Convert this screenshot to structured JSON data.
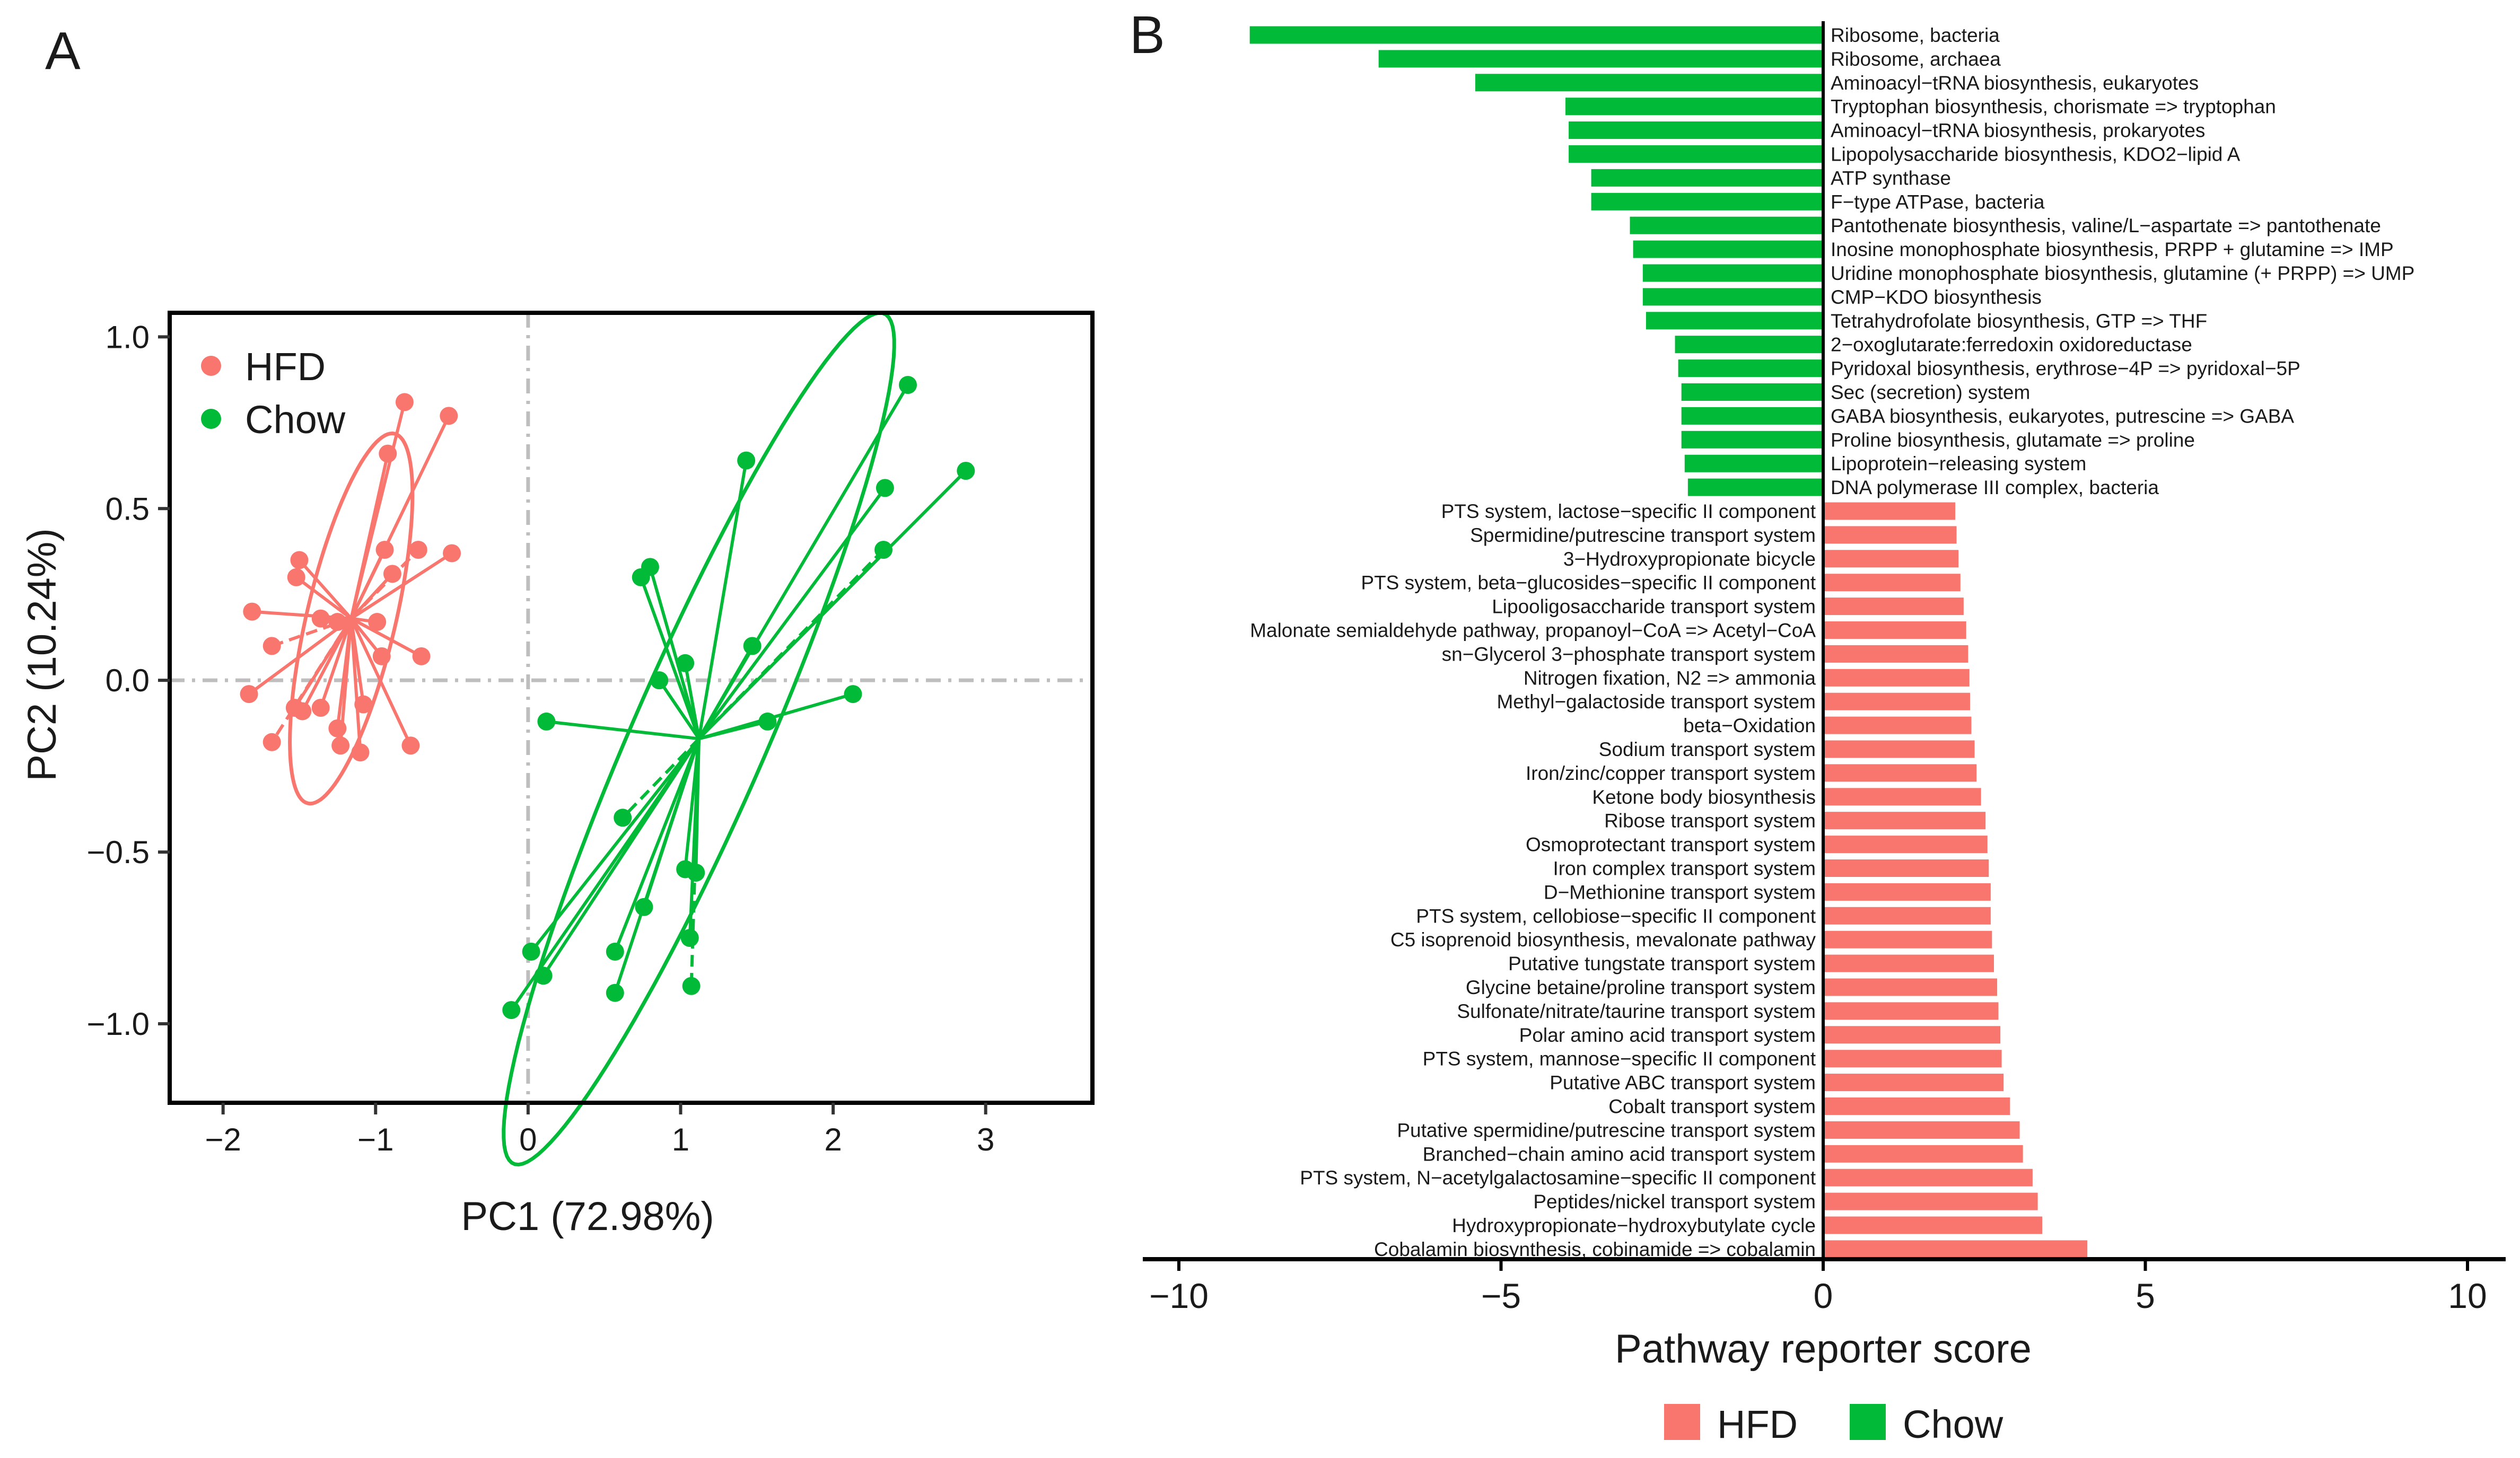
{
  "colors": {
    "hfd": "#F8766D",
    "chow": "#00BA38",
    "axis": "#000000",
    "refline": "#BEBEBE"
  },
  "panel_a": {
    "label": "A",
    "legend": [
      {
        "key": "hfd",
        "label": "HFD"
      },
      {
        "key": "chow",
        "label": "Chow"
      }
    ]
  },
  "panel_b": {
    "label": "B",
    "legend": [
      {
        "key": "hfd",
        "label": "HFD"
      },
      {
        "key": "chow",
        "label": "Chow"
      }
    ]
  },
  "chart_data": [
    {
      "type": "scatter",
      "title": "",
      "xlabel": "PC1 (72.98%)",
      "ylabel": "PC2 (10.24%)",
      "xlim": [
        -2.35,
        3.7
      ],
      "ylim": [
        -1.23,
        1.07
      ],
      "xticks": [
        -2,
        -1,
        0,
        1,
        2,
        3
      ],
      "xtick_labels": [
        "−2",
        "−1",
        "0",
        "1",
        "2",
        "3"
      ],
      "yticks": [
        -1.0,
        -0.5,
        0.0,
        0.5,
        1.0
      ],
      "ytick_labels": [
        "−1.0",
        "−0.5",
        "0.0",
        "0.5",
        "1.0"
      ],
      "reference_lines": {
        "x": 0,
        "y": 0
      },
      "legend_position": "top-left",
      "series": [
        {
          "name": "HFD",
          "key": "hfd",
          "centroid": [
            -1.16,
            0.18
          ],
          "ellipse": {
            "center": [
              -1.16,
              0.18
            ],
            "rx": 0.62,
            "ry": 0.26,
            "angle_deg": 57
          },
          "points": [
            {
              "x": -0.81,
              "y": 0.81
            },
            {
              "x": -0.52,
              "y": 0.77
            },
            {
              "x": -0.92,
              "y": 0.66
            },
            {
              "x": -0.5,
              "y": 0.37
            },
            {
              "x": -0.72,
              "y": 0.38
            },
            {
              "x": -0.94,
              "y": 0.38
            },
            {
              "x": -0.89,
              "y": 0.31
            },
            {
              "x": -1.5,
              "y": 0.35
            },
            {
              "x": -1.52,
              "y": 0.3
            },
            {
              "x": -1.81,
              "y": 0.2
            },
            {
              "x": -1.36,
              "y": 0.18
            },
            {
              "x": -1.25,
              "y": 0.17
            },
            {
              "x": -0.99,
              "y": 0.17
            },
            {
              "x": -1.68,
              "y": 0.1
            },
            {
              "x": -0.7,
              "y": 0.07
            },
            {
              "x": -0.96,
              "y": 0.07
            },
            {
              "x": -1.83,
              "y": -0.04
            },
            {
              "x": -1.48,
              "y": -0.09
            },
            {
              "x": -1.36,
              "y": -0.08
            },
            {
              "x": -1.53,
              "y": -0.08
            },
            {
              "x": -1.08,
              "y": -0.07
            },
            {
              "x": -1.25,
              "y": -0.14
            },
            {
              "x": -1.68,
              "y": -0.18
            },
            {
              "x": -1.23,
              "y": -0.19
            },
            {
              "x": -1.1,
              "y": -0.21
            },
            {
              "x": -0.77,
              "y": -0.19
            }
          ]
        },
        {
          "name": "Chow",
          "key": "chow",
          "centroid": [
            1.12,
            -0.17
          ],
          "ellipse": {
            "center": [
              1.12,
              -0.17
            ],
            "rx": 1.75,
            "ry": 0.34,
            "angle_deg": 44
          },
          "points": [
            {
              "x": 2.49,
              "y": 0.86
            },
            {
              "x": 2.87,
              "y": 0.61
            },
            {
              "x": 1.43,
              "y": 0.64
            },
            {
              "x": 2.34,
              "y": 0.56
            },
            {
              "x": 2.33,
              "y": 0.38
            },
            {
              "x": 0.8,
              "y": 0.33
            },
            {
              "x": 0.74,
              "y": 0.3
            },
            {
              "x": 1.47,
              "y": 0.1
            },
            {
              "x": 1.03,
              "y": 0.05
            },
            {
              "x": 0.86,
              "y": 0.0
            },
            {
              "x": 2.13,
              "y": -0.04
            },
            {
              "x": 0.12,
              "y": -0.12
            },
            {
              "x": 1.57,
              "y": -0.12
            },
            {
              "x": 0.62,
              "y": -0.4
            },
            {
              "x": 1.03,
              "y": -0.55
            },
            {
              "x": 1.1,
              "y": -0.56
            },
            {
              "x": 0.76,
              "y": -0.66
            },
            {
              "x": 1.06,
              "y": -0.75
            },
            {
              "x": 0.57,
              "y": -0.79
            },
            {
              "x": 0.02,
              "y": -0.79
            },
            {
              "x": 0.1,
              "y": -0.86
            },
            {
              "x": 0.57,
              "y": -0.91
            },
            {
              "x": 1.07,
              "y": -0.89
            },
            {
              "x": -0.11,
              "y": -0.96
            }
          ]
        }
      ]
    },
    {
      "type": "bar",
      "orientation": "horizontal",
      "title": "",
      "xlabel": "Pathway reporter score",
      "ylabel": "",
      "xlim": [
        -10.5,
        10.5
      ],
      "xticks": [
        -10,
        -5,
        0,
        5,
        10
      ],
      "xtick_labels": [
        "−10",
        "−5",
        "0",
        "5",
        "10"
      ],
      "legend_position": "bottom",
      "categories": [
        "Ribosome, bacteria",
        "Ribosome, archaea",
        "Aminoacyl−tRNA biosynthesis, eukaryotes",
        "Tryptophan biosynthesis, chorismate => tryptophan",
        "Aminoacyl−tRNA biosynthesis, prokaryotes",
        "Lipopolysaccharide biosynthesis, KDO2−lipid A",
        "ATP synthase",
        "F−type ATPase, bacteria",
        "Pantothenate biosynthesis, valine/L−aspartate => pantothenate",
        "Inosine monophosphate biosynthesis, PRPP + glutamine => IMP",
        "Uridine monophosphate biosynthesis, glutamine (+ PRPP) => UMP",
        "CMP−KDO biosynthesis",
        "Tetrahydrofolate biosynthesis, GTP => THF",
        "2−oxoglutarate:ferredoxin oxidoreductase",
        "Pyridoxal biosynthesis, erythrose−4P => pyridoxal−5P",
        "Sec (secretion) system",
        "GABA biosynthesis, eukaryotes, putrescine => GABA",
        "Proline biosynthesis, glutamate => proline",
        "Lipoprotein−releasing system",
        "DNA polymerase III complex, bacteria",
        "PTS system, lactose−specific II component",
        "Spermidine/putrescine transport system",
        "3−Hydroxypropionate bicycle",
        "PTS system, beta−glucosides−specific II component",
        "Lipooligosaccharide transport system",
        "Malonate semialdehyde pathway, propanoyl−CoA => Acetyl−CoA",
        "sn−Glycerol 3−phosphate transport system",
        "Nitrogen fixation, N2 => ammonia",
        "Methyl−galactoside transport system",
        "beta−Oxidation",
        "Sodium transport system",
        "Iron/zinc/copper transport system",
        "Ketone body biosynthesis",
        "Ribose transport system",
        "Osmoprotectant transport system",
        "Iron complex transport system",
        "D−Methionine transport system",
        "PTS system, cellobiose−specific II component",
        "C5 isoprenoid biosynthesis, mevalonate pathway",
        "Putative tungstate transport system",
        "Glycine betaine/proline transport system",
        "Sulfonate/nitrate/taurine transport system",
        "Polar amino acid transport system",
        "PTS system, mannose−specific II component",
        "Putative ABC transport system",
        "Cobalt transport system",
        "Putative spermidine/putrescine transport system",
        "Branched−chain amino acid transport system",
        "PTS system, N−acetylgalactosamine−specific II component",
        "Peptides/nickel transport system",
        "Hydroxypropionate−hydroxybutylate cycle",
        "Cobalamin biosynthesis, cobinamide => cobalamin"
      ],
      "values": [
        -8.9,
        -6.9,
        -5.4,
        -4.0,
        -3.95,
        -3.95,
        -3.6,
        -3.6,
        -3.0,
        -2.95,
        -2.8,
        -2.8,
        -2.75,
        -2.3,
        -2.25,
        -2.2,
        -2.2,
        -2.2,
        -2.15,
        -2.1,
        2.05,
        2.07,
        2.1,
        2.13,
        2.18,
        2.22,
        2.25,
        2.27,
        2.28,
        2.3,
        2.35,
        2.38,
        2.45,
        2.52,
        2.55,
        2.57,
        2.6,
        2.6,
        2.62,
        2.65,
        2.7,
        2.72,
        2.75,
        2.77,
        2.8,
        2.9,
        3.05,
        3.1,
        3.25,
        3.33,
        3.4,
        4.1
      ],
      "groups": [
        "chow",
        "chow",
        "chow",
        "chow",
        "chow",
        "chow",
        "chow",
        "chow",
        "chow",
        "chow",
        "chow",
        "chow",
        "chow",
        "chow",
        "chow",
        "chow",
        "chow",
        "chow",
        "chow",
        "chow",
        "hfd",
        "hfd",
        "hfd",
        "hfd",
        "hfd",
        "hfd",
        "hfd",
        "hfd",
        "hfd",
        "hfd",
        "hfd",
        "hfd",
        "hfd",
        "hfd",
        "hfd",
        "hfd",
        "hfd",
        "hfd",
        "hfd",
        "hfd",
        "hfd",
        "hfd",
        "hfd",
        "hfd",
        "hfd",
        "hfd",
        "hfd",
        "hfd",
        "hfd",
        "hfd",
        "hfd",
        "hfd"
      ]
    }
  ]
}
